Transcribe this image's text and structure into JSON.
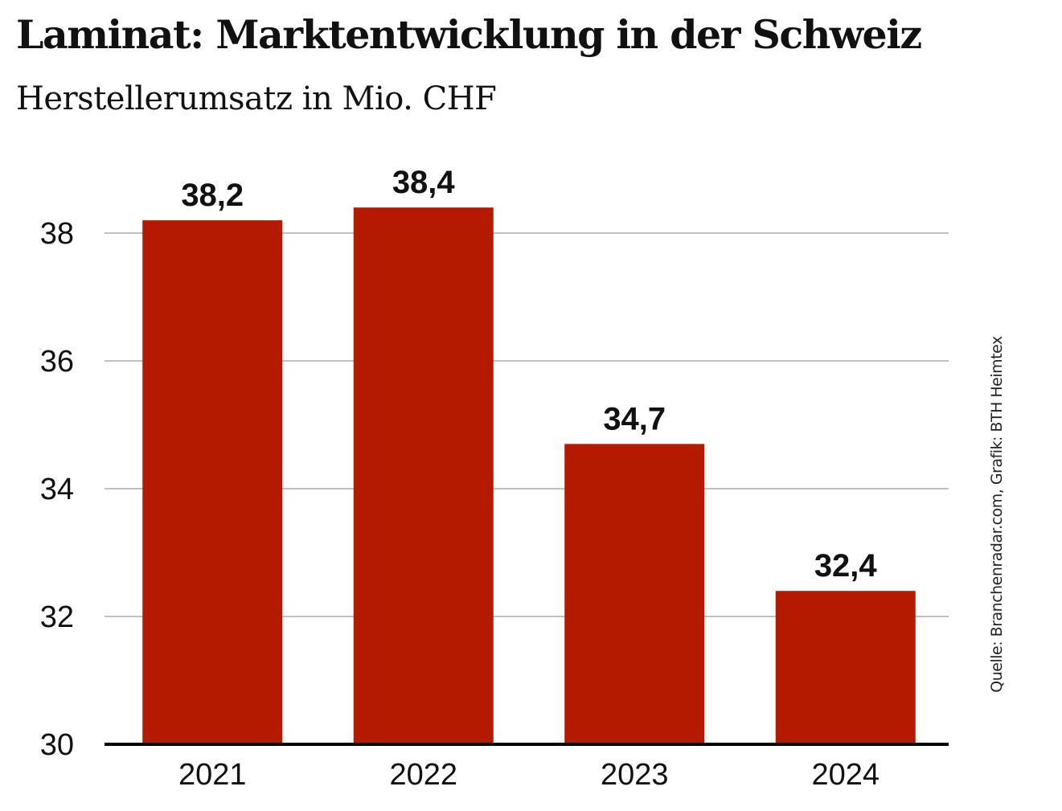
{
  "header": {
    "title": "Laminat: Marktentwicklung in der Schweiz",
    "subtitle": "Herstellerumsatz in Mio. CHF"
  },
  "source": "Quelle: Branchenradar.com, Grafik: BTH Heimtex",
  "colors": {
    "bar": "#b31a00",
    "grid": "#c0c0c0",
    "axis": "#000000"
  },
  "chart_data": {
    "type": "bar",
    "title": "Laminat: Marktentwicklung in der Schweiz",
    "subtitle": "Herstellerumsatz in Mio. CHF",
    "xlabel": "",
    "ylabel": "",
    "categories": [
      "2021",
      "2022",
      "2023",
      "2024"
    ],
    "values": [
      38.2,
      38.4,
      34.7,
      32.4
    ],
    "data_labels": [
      "38,2",
      "38,4",
      "34,7",
      "32,4"
    ],
    "ylim": [
      30,
      39.5
    ],
    "yticks": [
      30,
      32,
      34,
      36,
      38
    ],
    "ytick_labels": [
      "30",
      "32",
      "34",
      "36",
      "38"
    ],
    "grid": true,
    "legend": "none",
    "annotation": "Quelle: Branchenradar.com, Grafik: BTH Heimtex"
  }
}
